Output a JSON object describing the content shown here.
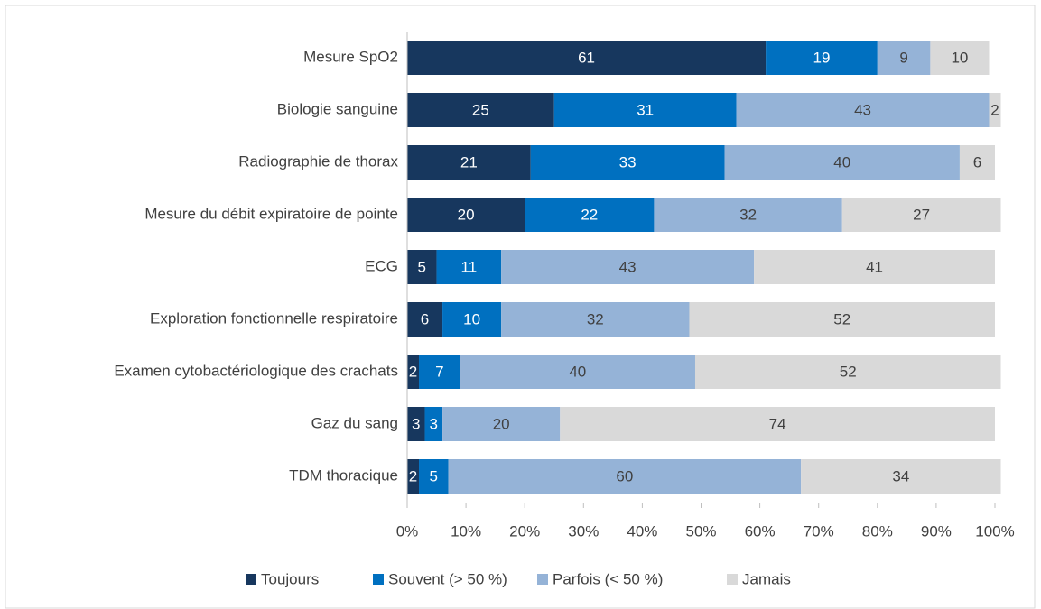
{
  "chart_data": {
    "type": "stacked_barh",
    "categories": [
      "Mesure SpO2",
      "Biologie sanguine",
      "Radiographie de thorax",
      "Mesure du débit expiratoire de pointe",
      "ECG",
      "Exploration fonctionnelle respiratoire",
      "Examen cytobactériologique des crachats",
      "Gaz du sang",
      "TDM thoracique"
    ],
    "series": [
      {
        "name": "Toujours",
        "color": "#17375e",
        "label_color": "#ffffff",
        "values": [
          61,
          25,
          21,
          20,
          5,
          6,
          2,
          3,
          2
        ]
      },
      {
        "name": "Souvent (> 50 %)",
        "color": "#0070c0",
        "label_color": "#ffffff",
        "values": [
          19,
          31,
          33,
          22,
          11,
          10,
          7,
          3,
          5
        ]
      },
      {
        "name": "Parfois (< 50 %)",
        "color": "#95b3d7",
        "label_color": "#404040",
        "values": [
          9,
          43,
          40,
          32,
          43,
          32,
          40,
          20,
          60
        ]
      },
      {
        "name": "Jamais",
        "color": "#d9d9d9",
        "label_color": "#404040",
        "values": [
          10,
          2,
          6,
          27,
          41,
          52,
          52,
          74,
          34
        ]
      }
    ],
    "xlim": [
      0,
      100
    ],
    "xticks": [
      {
        "value": 0,
        "label": "0%"
      },
      {
        "value": 10,
        "label": "10%"
      },
      {
        "value": 20,
        "label": "20%"
      },
      {
        "value": 30,
        "label": "30%"
      },
      {
        "value": 40,
        "label": "40%"
      },
      {
        "value": 50,
        "label": "50%"
      },
      {
        "value": 60,
        "label": "60%"
      },
      {
        "value": 70,
        "label": "70%"
      },
      {
        "value": 80,
        "label": "80%"
      },
      {
        "value": 90,
        "label": "90%"
      },
      {
        "value": 100,
        "label": "100%"
      }
    ],
    "legend": "bottom"
  }
}
